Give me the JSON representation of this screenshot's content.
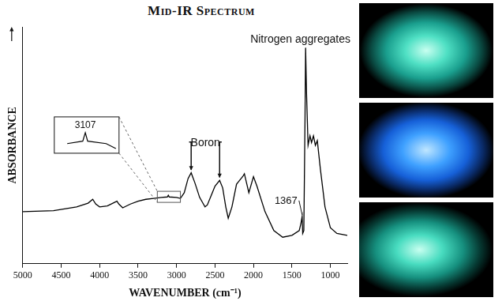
{
  "chart_data": {
    "type": "line",
    "title": "Mid-IR Spectrum",
    "x_label": "WAVENUMBER (cm⁻¹)",
    "y_label": "ABSORBANCE",
    "color": "#000000",
    "x": [
      5000,
      4600,
      4300,
      4150,
      4090,
      4050,
      4000,
      3900,
      3775,
      3750,
      3700,
      3600,
      3500,
      3400,
      3300,
      3200,
      3120,
      3107,
      3095,
      3000,
      2950,
      2900,
      2850,
      2810,
      2760,
      2700,
      2630,
      2600,
      2550,
      2500,
      2440,
      2400,
      2360,
      2328,
      2280,
      2220,
      2200,
      2140,
      2118,
      2060,
      2000,
      1955,
      1850,
      1735,
      1620,
      1500,
      1405,
      1383,
      1367,
      1360,
      1345,
      1330,
      1322,
      1310,
      1290,
      1265,
      1245,
      1220,
      1195,
      1170,
      1130,
      1070,
      1000,
      915,
      780
    ],
    "values": [
      22,
      22.4,
      24,
      25.6,
      27.2,
      25.2,
      24,
      24.4,
      26.4,
      25.2,
      23.6,
      25.2,
      26.4,
      27.2,
      27.6,
      28,
      28.2,
      28.9,
      28.2,
      28,
      27.6,
      30,
      36,
      38.4,
      34,
      28,
      24,
      24.8,
      28.8,
      32.8,
      35.2,
      32,
      24,
      19.2,
      24,
      33.6,
      34.4,
      36.8,
      38,
      30,
      36.8,
      32.8,
      22,
      14,
      11.2,
      12,
      14,
      17,
      20,
      12.8,
      14,
      60,
      91.2,
      72,
      50,
      54,
      51.2,
      54,
      50,
      52,
      40,
      24,
      15.2,
      12.8,
      12
    ],
    "xlim": [
      5000,
      780
    ],
    "xticks": [
      5000,
      4500,
      4000,
      3500,
      3000,
      2500,
      2000,
      1500,
      1000
    ],
    "ylim": [
      0,
      100
    ],
    "tick_labels": "x",
    "grid": false,
    "annotations": [
      {
        "kind": "label",
        "text": "Nitrogen aggregates",
        "x": 1322
      },
      {
        "kind": "arrows",
        "text": "Boron",
        "x": [
          2810,
          2440
        ]
      },
      {
        "kind": "leader",
        "text": "1367",
        "x": 1367
      },
      {
        "kind": "inset",
        "text": "3107",
        "x": 3107,
        "inset_xlim": [
          3250,
          2950
        ]
      }
    ]
  }
}
